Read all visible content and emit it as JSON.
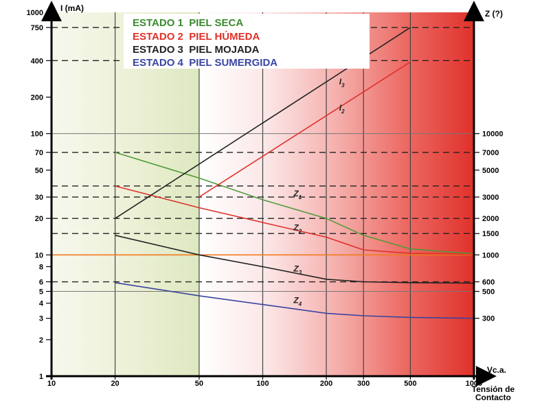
{
  "chart_data": {
    "type": "line",
    "x_axis": {
      "scale": "log",
      "label": "Vc.a.",
      "label2_line1": "Tensión de",
      "label2_line2": "Contacto",
      "ticks": [
        10,
        20,
        50,
        100,
        200,
        300,
        500,
        1000
      ],
      "tick_labels": [
        "10",
        "20",
        "50",
        "100",
        "200",
        "300",
        "500",
        "1000"
      ],
      "range": [
        10,
        1000
      ]
    },
    "y_left_axis": {
      "scale": "log",
      "label": "I (mA)",
      "ticks": [
        1,
        2,
        3,
        4,
        5,
        6,
        8,
        10,
        20,
        30,
        50,
        70,
        100,
        200,
        400,
        750,
        1000
      ],
      "tick_labels": [
        "1",
        "2",
        "3",
        "4",
        "5",
        "6",
        "8",
        "10",
        "20",
        "30",
        "50",
        "70",
        "100",
        "200",
        "400",
        "750",
        "1000"
      ],
      "range": [
        1,
        1000
      ]
    },
    "y_right_axis": {
      "scale": "log",
      "label": "Z (?)",
      "ticks": [
        300,
        500,
        600,
        1000,
        1500,
        2000,
        3000,
        5000,
        7000,
        10000
      ],
      "tick_labels": [
        "300",
        "500",
        "600",
        "1000",
        "1500",
        "2000",
        "3000",
        "5000",
        "7000",
        "10000"
      ]
    },
    "legend": [
      {
        "label": "ESTADO 1  PIEL SECA",
        "color": "#3a8a2e"
      },
      {
        "label": "ESTADO 2  PIEL HÚMEDA",
        "color": "#e0302a"
      },
      {
        "label": "ESTADO 3  PIEL MOJADA",
        "color": "#222222"
      },
      {
        "label": "ESTADO 4  PIEL SUMERGIDA",
        "color": "#3a44a0"
      }
    ],
    "series": [
      {
        "name": "Z1",
        "color": "#4f9a3a",
        "x": [
          20,
          50,
          100,
          200,
          300,
          500,
          1000
        ],
        "z": [
          7000,
          4300,
          2850,
          2000,
          1450,
          1120,
          1020
        ]
      },
      {
        "name": "Z2",
        "color": "#e0302a",
        "x": [
          20,
          50,
          100,
          200,
          300,
          500,
          1000
        ],
        "z": [
          3700,
          2450,
          1850,
          1400,
          1100,
          1030,
          1010
        ]
      },
      {
        "name": "Z3",
        "color": "#222222",
        "x": [
          20,
          50,
          100,
          200,
          300,
          500,
          1000
        ],
        "z": [
          1450,
          1000,
          800,
          630,
          600,
          590,
          585
        ]
      },
      {
        "name": "Z4",
        "color": "#3a44a0",
        "x": [
          20,
          50,
          100,
          200,
          300,
          500,
          1000
        ],
        "z": [
          590,
          460,
          390,
          330,
          315,
          305,
          300
        ]
      },
      {
        "name": "I3",
        "color": "#222222",
        "x": [
          20,
          500
        ],
        "y": [
          20,
          750
        ]
      },
      {
        "name": "I2",
        "color": "#e0302a",
        "x": [
          50,
          500
        ],
        "y": [
          30,
          390
        ]
      }
    ],
    "reference_lines": {
      "dashed_y": [
        750,
        400,
        70,
        37,
        30,
        20,
        15,
        6
      ],
      "solid_y": [
        100,
        5
      ],
      "orange_y": 10,
      "vertical_x": [
        20,
        50,
        100,
        200,
        300,
        500
      ]
    },
    "annotations": [
      {
        "text": "I",
        "sub": "3"
      },
      {
        "text": "I",
        "sub": "2"
      },
      {
        "text": "Z",
        "sub": "1"
      },
      {
        "text": "Z",
        "sub": "2"
      },
      {
        "text": "Z",
        "sub": "3"
      },
      {
        "text": "Z",
        "sub": "4"
      }
    ],
    "background": {
      "region1": "light-green-to-white",
      "region2": "white-to-red"
    }
  }
}
